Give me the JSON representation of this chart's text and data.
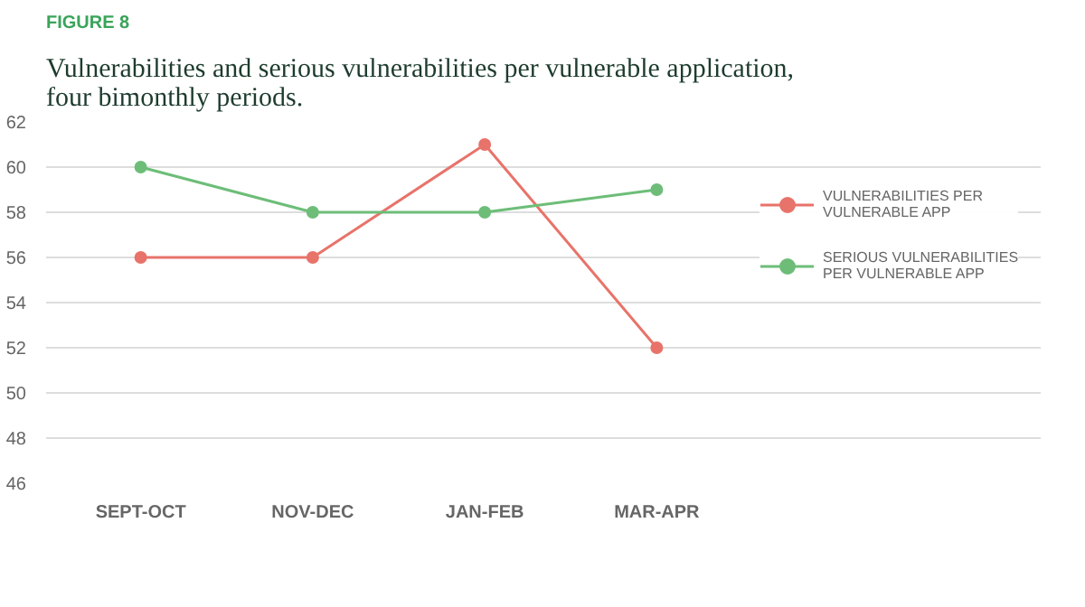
{
  "chart_data": {
    "type": "line",
    "title": "Vulnerabilities and serious vulnerabilities per vulnerable application, four bimonthly periods.",
    "annotations": [
      "FIGURE 8"
    ],
    "categories": [
      "SEPT-OCT",
      "NOV-DEC",
      "JAN-FEB",
      "MAR-APR"
    ],
    "series": [
      {
        "name": "VULNERABILITIES PER VULNERABLE APP",
        "color": "#e8736a",
        "values": [
          56,
          56,
          61,
          52
        ]
      },
      {
        "name": "SERIOUS VULNERABILITIES PER VULNERABLE APP",
        "color": "#6dbd78",
        "values": [
          60,
          58,
          58,
          59
        ]
      }
    ],
    "ylim": [
      46,
      62
    ],
    "yticks": [
      46,
      48,
      50,
      52,
      54,
      56,
      58,
      60,
      62
    ],
    "grid": "y",
    "legend": "right",
    "marker": "circle",
    "line_style": "solid"
  }
}
